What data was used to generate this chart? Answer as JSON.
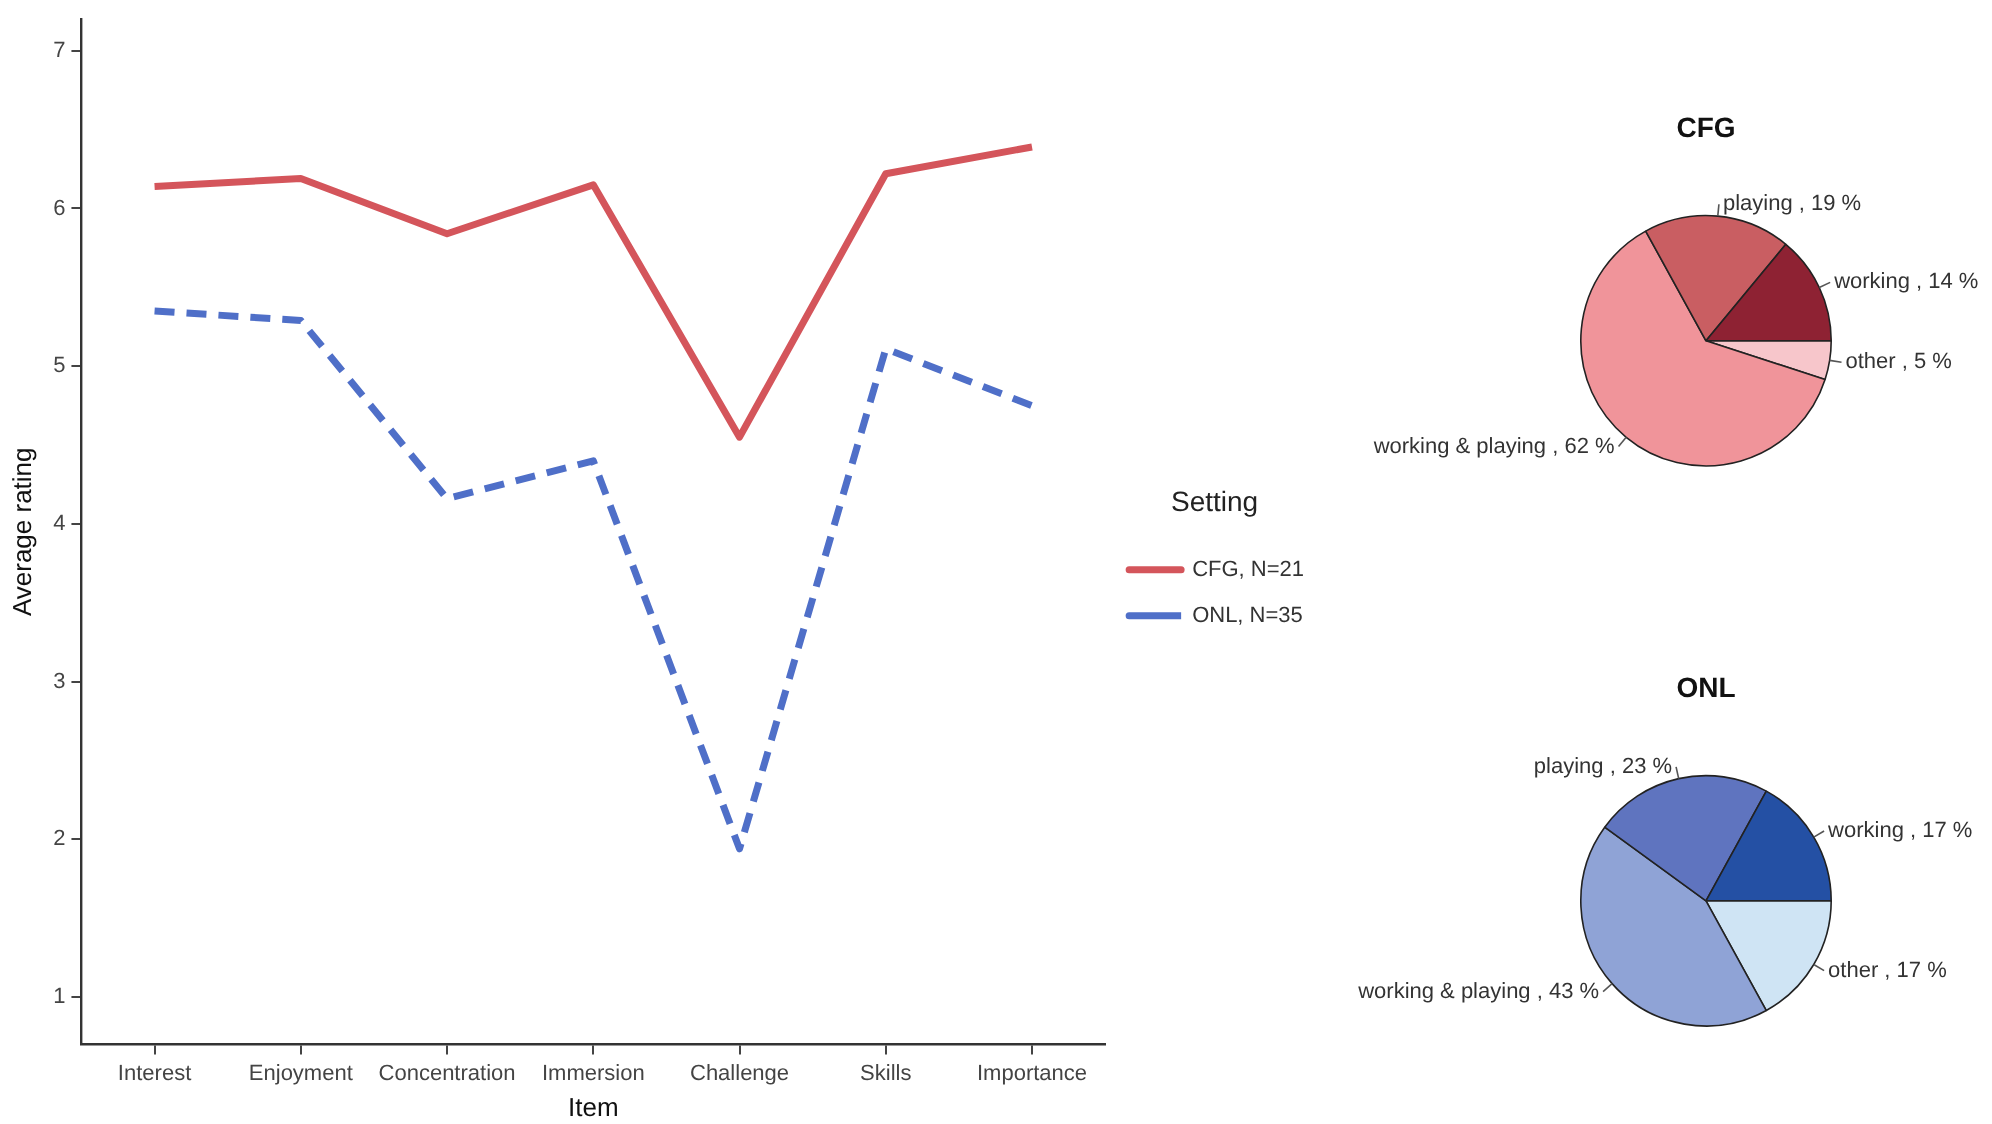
{
  "chart_data": [
    {
      "type": "line",
      "xlabel": "Item",
      "ylabel": "Average rating",
      "legend_title": "Setting",
      "legend": "right",
      "grid": false,
      "marker": "none",
      "categories": [
        "Interest",
        "Enjoyment",
        "Concentration",
        "Immersion",
        "Challenge",
        "Skills",
        "Importance"
      ],
      "ylim": [
        0.7,
        7.2
      ],
      "yticks": [
        1,
        2,
        3,
        4,
        5,
        6,
        7
      ],
      "series": [
        {
          "name": "CFG, N=21",
          "color": "#d4555b",
          "line_style": "solid",
          "values": [
            6.14,
            6.19,
            5.84,
            6.15,
            4.55,
            6.22,
            6.39
          ]
        },
        {
          "name": "ONL, N=35",
          "color": "#4f6fc8",
          "line_style": "dashed",
          "values": [
            5.35,
            5.29,
            4.16,
            4.4,
            1.94,
            5.11,
            4.75
          ]
        }
      ]
    },
    {
      "type": "pie",
      "title": "CFG",
      "legend": false,
      "categories": [
        "other",
        "working & playing",
        "playing",
        "working"
      ],
      "values": [
        5,
        62,
        19,
        14
      ],
      "colors": [
        "#f7c6cb",
        "#f0949a",
        "#c95e62",
        "#8e2233"
      ],
      "value_labels": [
        "5 %",
        "62 %",
        "19 %",
        "14 %"
      ]
    },
    {
      "type": "pie",
      "title": "ONL",
      "legend": false,
      "categories": [
        "other",
        "working & playing",
        "playing",
        "working"
      ],
      "values": [
        17,
        43,
        23,
        17
      ],
      "colors": [
        "#cfe4f4",
        "#8fa3d6",
        "#5f74bf",
        "#2450a4"
      ],
      "value_labels": [
        "17 %",
        "43 %",
        "23 %",
        "17 %"
      ]
    }
  ]
}
